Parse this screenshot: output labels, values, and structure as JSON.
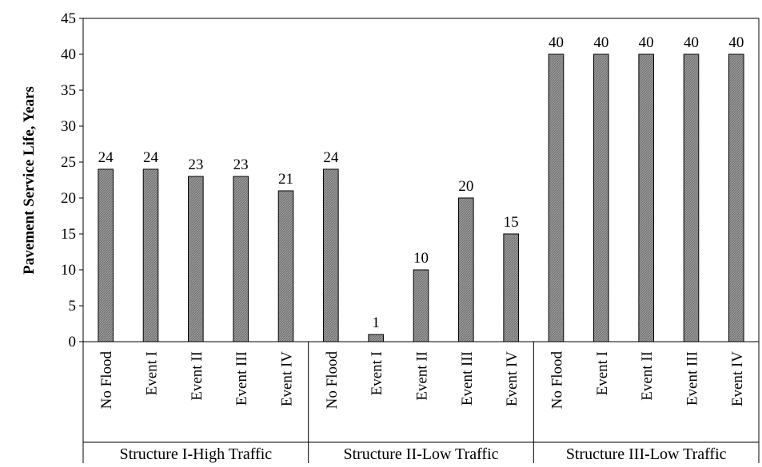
{
  "chart_data": {
    "type": "bar",
    "title": "",
    "xlabel": "",
    "ylabel": "Pavement Service Life, Years",
    "ylim": [
      0,
      45
    ],
    "yticks": [
      0,
      5,
      10,
      15,
      20,
      25,
      30,
      35,
      40,
      45
    ],
    "grid": false,
    "legend": "none",
    "groups": [
      {
        "name": "Structure I-High Traffic",
        "categories": [
          "No Flood",
          "Event I",
          "Event II",
          "Event III",
          "Event IV"
        ],
        "values": [
          24,
          24,
          23,
          23,
          21
        ]
      },
      {
        "name": "Structure II-Low Traffic",
        "categories": [
          "No Flood",
          "Event I",
          "Event II",
          "Event III",
          "Event IV"
        ],
        "values": [
          24,
          1,
          10,
          20,
          15
        ]
      },
      {
        "name": "Structure III-Low Traffic",
        "categories": [
          "No Flood",
          "Event I",
          "Event II",
          "Event III",
          "Event IV"
        ],
        "values": [
          40,
          40,
          40,
          40,
          40
        ]
      }
    ],
    "colors": {
      "bar_fill": "#8c8c8c",
      "bar_stroke": "#000000",
      "axis": "#000000"
    }
  }
}
